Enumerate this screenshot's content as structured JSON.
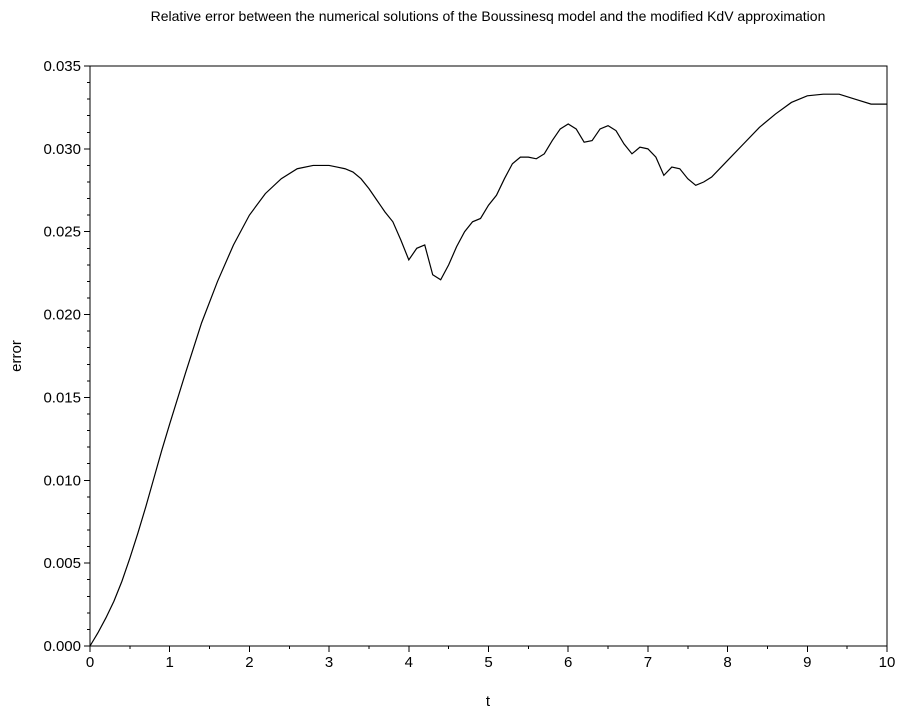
{
  "chart_data": {
    "type": "line",
    "title": "Relative error between the numerical solutions of the Boussinesq model and the modified KdV approximation",
    "xlabel": "t",
    "ylabel": "error",
    "xlim": [
      0,
      10
    ],
    "ylim": [
      0,
      0.035
    ],
    "grid": false,
    "x_ticks": [
      "0",
      "1",
      "2",
      "3",
      "4",
      "5",
      "6",
      "7",
      "8",
      "9",
      "10"
    ],
    "y_ticks": [
      "0.000",
      "0.005",
      "0.010",
      "0.015",
      "0.020",
      "0.025",
      "0.030",
      "0.035"
    ],
    "series": [
      {
        "x": [
          0,
          0.1,
          0.2,
          0.3,
          0.4,
          0.5,
          0.6,
          0.7,
          0.8,
          0.9,
          1.0,
          1.2,
          1.4,
          1.6,
          1.8,
          2.0,
          2.2,
          2.4,
          2.6,
          2.8,
          3.0,
          3.1,
          3.2,
          3.3,
          3.4,
          3.5,
          3.6,
          3.7,
          3.8,
          3.9,
          4.0,
          4.1,
          4.2,
          4.3,
          4.4,
          4.5,
          4.6,
          4.7,
          4.8,
          4.9,
          5.0,
          5.1,
          5.2,
          5.3,
          5.4,
          5.5,
          5.6,
          5.7,
          5.8,
          5.9,
          6.0,
          6.1,
          6.2,
          6.3,
          6.4,
          6.5,
          6.6,
          6.7,
          6.8,
          6.9,
          7.0,
          7.1,
          7.2,
          7.3,
          7.4,
          7.5,
          7.6,
          7.7,
          7.8,
          8.0,
          8.2,
          8.4,
          8.6,
          8.8,
          9.0,
          9.2,
          9.4,
          9.6,
          9.8,
          10.0
        ],
        "values": [
          0.0,
          0.0008,
          0.0017,
          0.0027,
          0.0039,
          0.0053,
          0.0068,
          0.0084,
          0.0101,
          0.0118,
          0.0134,
          0.0165,
          0.0195,
          0.022,
          0.0242,
          0.026,
          0.0273,
          0.0282,
          0.0288,
          0.029,
          0.029,
          0.0289,
          0.0288,
          0.0286,
          0.0282,
          0.0276,
          0.0269,
          0.0262,
          0.0256,
          0.0245,
          0.0233,
          0.024,
          0.0242,
          0.0224,
          0.0221,
          0.023,
          0.0241,
          0.025,
          0.0256,
          0.0258,
          0.0266,
          0.0272,
          0.0282,
          0.0291,
          0.0295,
          0.0295,
          0.0294,
          0.0297,
          0.0305,
          0.0312,
          0.0315,
          0.0312,
          0.0304,
          0.0305,
          0.0312,
          0.0314,
          0.0311,
          0.0303,
          0.0297,
          0.0301,
          0.03,
          0.0295,
          0.0284,
          0.0289,
          0.0288,
          0.0282,
          0.0278,
          0.028,
          0.0283,
          0.0293,
          0.0303,
          0.0313,
          0.0321,
          0.0328,
          0.0332,
          0.0333,
          0.0333,
          0.033,
          0.0327,
          0.0327
        ]
      }
    ]
  }
}
